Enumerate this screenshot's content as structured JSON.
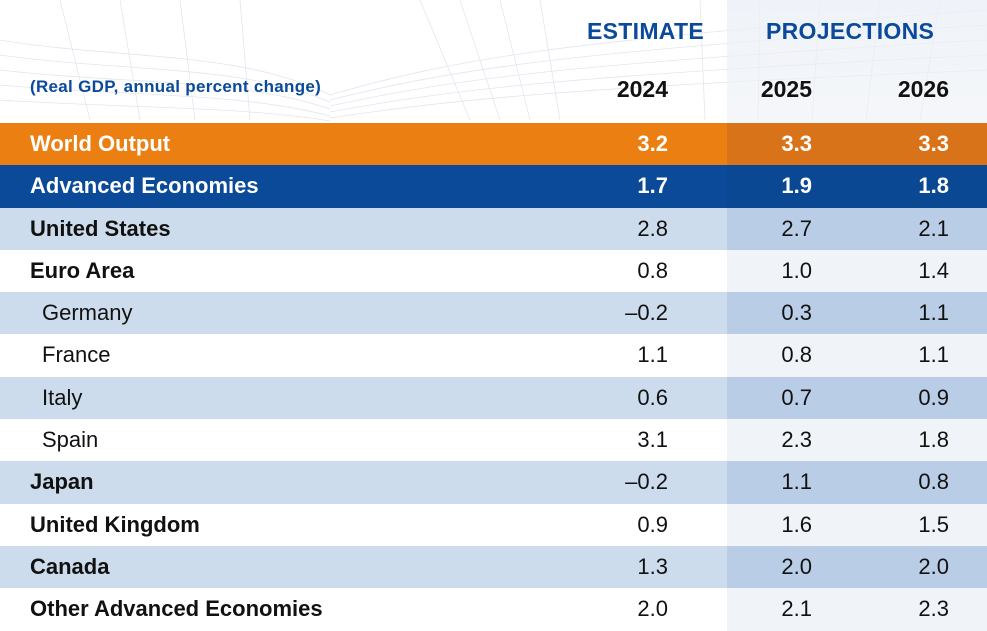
{
  "chart_data": {
    "type": "table",
    "title": "(Real GDP, annual percent change)",
    "group_headers": [
      "ESTIMATE",
      "PROJECTIONS"
    ],
    "columns": [
      "2024",
      "2025",
      "2026"
    ],
    "rows": [
      {
        "name": "World Output",
        "style": "world",
        "values": [
          "3.2",
          "3.3",
          "3.3"
        ]
      },
      {
        "name": "Advanced Economies",
        "style": "adv",
        "values": [
          "1.7",
          "1.9",
          "1.8"
        ]
      },
      {
        "name": "United States",
        "style": "shade",
        "values": [
          "2.8",
          "2.7",
          "2.1"
        ]
      },
      {
        "name": "Euro Area",
        "style": "plain",
        "values": [
          "0.8",
          "1.0",
          "1.4"
        ]
      },
      {
        "name": "Germany",
        "style": "shade",
        "indent": true,
        "values": [
          "–0.2",
          "0.3",
          "1.1"
        ]
      },
      {
        "name": "France",
        "style": "plain",
        "indent": true,
        "values": [
          "1.1",
          "0.8",
          "1.1"
        ]
      },
      {
        "name": "Italy",
        "style": "shade",
        "indent": true,
        "values": [
          "0.6",
          "0.7",
          "0.9"
        ]
      },
      {
        "name": "Spain",
        "style": "plain",
        "indent": true,
        "values": [
          "3.1",
          "2.3",
          "1.8"
        ]
      },
      {
        "name": "Japan",
        "style": "shade",
        "values": [
          "–0.2",
          "1.1",
          "0.8"
        ]
      },
      {
        "name": "United Kingdom",
        "style": "plain",
        "values": [
          "0.9",
          "1.6",
          "1.5"
        ]
      },
      {
        "name": "Canada",
        "style": "shade",
        "values": [
          "1.3",
          "2.0",
          "2.0"
        ]
      },
      {
        "name": "Other Advanced Economies",
        "style": "plain",
        "values": [
          "2.0",
          "2.1",
          "2.3"
        ]
      }
    ]
  },
  "colors": {
    "world_output": "#ec7f11",
    "advanced_economies": "#0a4a99",
    "header_blue": "#0b4a9a",
    "row_shade": "#cddcec"
  }
}
